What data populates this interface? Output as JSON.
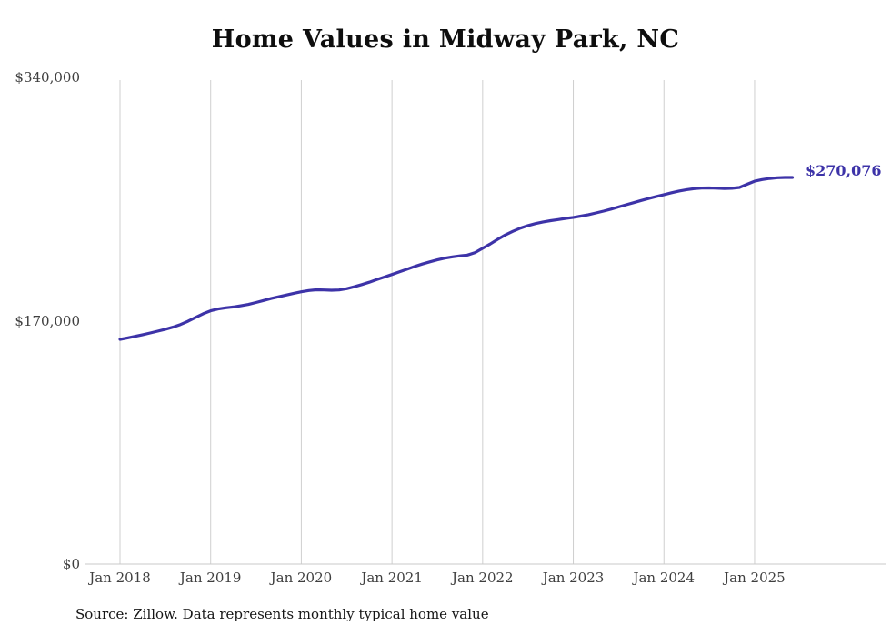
{
  "title": "Home Values in Midway Park, NC",
  "source_note": "Source: Zillow. Data represents monthly typical home value",
  "colors": {
    "line": "#3d33a8",
    "grid": "#cfcfcf",
    "axis_line": "#c9c9c9",
    "axis_text": "#3f3f3f",
    "title_text": "#0e0e0e"
  },
  "chart_data": {
    "type": "line",
    "title": "Home Values in Midway Park, NC",
    "xlabel": "",
    "ylabel": "",
    "ylim": [
      0,
      340000
    ],
    "yticks": [
      0,
      170000,
      340000
    ],
    "ytick_labels": [
      "$0",
      "$170,000",
      "$340,000"
    ],
    "xtick_labels": [
      "Jan 2018",
      "Jan 2019",
      "Jan 2020",
      "Jan 2021",
      "Jan 2022",
      "Jan 2023",
      "Jan 2024",
      "Jan 2025"
    ],
    "grid": "vertical",
    "legend": "none",
    "end_label": "$270,076",
    "end_value": 270076,
    "x": [
      "2018-01",
      "2018-02",
      "2018-03",
      "2018-04",
      "2018-05",
      "2018-06",
      "2018-07",
      "2018-08",
      "2018-09",
      "2018-10",
      "2018-11",
      "2018-12",
      "2019-01",
      "2019-02",
      "2019-03",
      "2019-04",
      "2019-05",
      "2019-06",
      "2019-07",
      "2019-08",
      "2019-09",
      "2019-10",
      "2019-11",
      "2019-12",
      "2020-01",
      "2020-02",
      "2020-03",
      "2020-04",
      "2020-05",
      "2020-06",
      "2020-07",
      "2020-08",
      "2020-09",
      "2020-10",
      "2020-11",
      "2020-12",
      "2021-01",
      "2021-02",
      "2021-03",
      "2021-04",
      "2021-05",
      "2021-06",
      "2021-07",
      "2021-08",
      "2021-09",
      "2021-10",
      "2021-11",
      "2021-12",
      "2022-01",
      "2022-02",
      "2022-03",
      "2022-04",
      "2022-05",
      "2022-06",
      "2022-07",
      "2022-08",
      "2022-09",
      "2022-10",
      "2022-11",
      "2022-12",
      "2023-01",
      "2023-02",
      "2023-03",
      "2023-04",
      "2023-05",
      "2023-06",
      "2023-07",
      "2023-08",
      "2023-09",
      "2023-10",
      "2023-11",
      "2023-12",
      "2024-01",
      "2024-02",
      "2024-03",
      "2024-04",
      "2024-05",
      "2024-06",
      "2024-07",
      "2024-08",
      "2024-09",
      "2024-10",
      "2024-11",
      "2024-12",
      "2025-01",
      "2025-02",
      "2025-03",
      "2025-04",
      "2025-05",
      "2025-06"
    ],
    "values": [
      157000,
      158000,
      159100,
      160200,
      161400,
      162700,
      164000,
      165500,
      167300,
      169600,
      172300,
      174800,
      176900,
      178200,
      179000,
      179600,
      180400,
      181400,
      182700,
      184100,
      185500,
      186700,
      187900,
      189100,
      190200,
      191100,
      191600,
      191500,
      191300,
      191500,
      192400,
      193700,
      195200,
      196900,
      198700,
      200500,
      202300,
      204100,
      206000,
      207900,
      209600,
      211100,
      212500,
      213700,
      214600,
      215300,
      215900,
      217600,
      220600,
      223600,
      226900,
      229900,
      232500,
      234700,
      236500,
      237900,
      239000,
      239900,
      240700,
      241500,
      242200,
      243100,
      244100,
      245300,
      246600,
      248000,
      249500,
      251000,
      252500,
      254000,
      255400,
      256800,
      258100,
      259400,
      260600,
      261600,
      262300,
      262700,
      262800,
      262600,
      262400,
      262500,
      263100,
      265300,
      267500,
      268600,
      269400,
      269900,
      270100,
      270076
    ]
  }
}
